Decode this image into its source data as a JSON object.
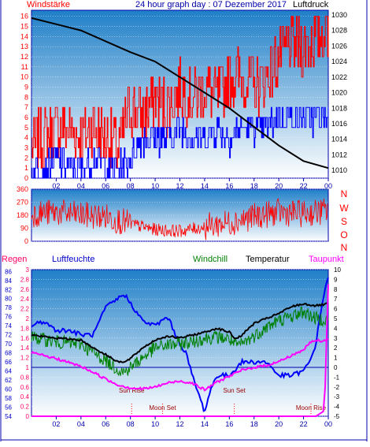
{
  "header": {
    "left": "Windstärke",
    "center": "24 hour graph day : 07 Dezember 2017",
    "right": "Luftdruck"
  },
  "colors": {
    "wind_gust": "#ff0000",
    "wind_avg": "#0000ff",
    "pressure": "#000000",
    "direction": "#ff0000",
    "rain": "#ff00ff",
    "humidity": "#0000ff",
    "windchill": "#008000",
    "temperature": "#000000",
    "dewpoint": "#ff00ff",
    "axis_rain": "#ff0066",
    "axis_humidity": "#0000cc",
    "frame": "#0000aa"
  },
  "chart_data": [
    {
      "type": "line",
      "name": "wind-pressure",
      "title": "24 hour graph day : 07 Dezember 2017",
      "ylabel_left": "Windstärke",
      "ylabel_right": "Luftdruck",
      "x_ticks": [
        "02",
        "04",
        "06",
        "08",
        "10",
        "12",
        "14",
        "16",
        "18",
        "20",
        "22",
        "00"
      ],
      "x_range_hours": [
        0,
        24
      ],
      "y_left_ticks": [
        "0",
        "1",
        "2",
        "3",
        "4",
        "5",
        "6",
        "7",
        "8",
        "9",
        "10",
        "11",
        "12",
        "13",
        "14",
        "15",
        "16"
      ],
      "ylim_left": [
        0,
        16.6
      ],
      "y_right_ticks": [
        "1010",
        "1012",
        "1014",
        "1016",
        "1018",
        "1020",
        "1022",
        "1024",
        "1026",
        "1028",
        "1030"
      ],
      "ylim_right": [
        1009,
        1030.6
      ],
      "series": [
        {
          "key": "gust",
          "hours": [
            0,
            1,
            2,
            3,
            4,
            5,
            6,
            7,
            8,
            9,
            10,
            11,
            12,
            13,
            14,
            15,
            16,
            17,
            18,
            19,
            20,
            21,
            22,
            23,
            24
          ],
          "values": [
            3,
            4,
            5,
            5,
            4,
            5,
            4,
            3,
            7,
            6,
            8,
            7,
            9,
            8,
            9,
            8,
            10,
            10,
            9,
            10,
            12,
            13,
            13,
            14,
            15
          ]
        },
        {
          "key": "avg",
          "hours": [
            0,
            1,
            2,
            3,
            4,
            5,
            6,
            7,
            8,
            9,
            10,
            11,
            12,
            13,
            14,
            15,
            16,
            17,
            18,
            19,
            20,
            21,
            22,
            23,
            24
          ],
          "values": [
            1,
            1,
            2,
            1,
            1,
            2,
            1,
            1,
            2,
            4,
            4,
            4,
            5,
            4,
            4,
            5,
            4,
            5,
            5,
            5,
            6,
            6,
            6,
            6,
            6
          ]
        },
        {
          "key": "pressure",
          "hours": [
            0,
            2,
            4,
            6,
            8,
            10,
            12,
            14,
            16,
            18,
            20,
            22,
            24
          ],
          "values": [
            1029.6,
            1028.8,
            1028.0,
            1026.6,
            1025.2,
            1024.0,
            1022.0,
            1020.0,
            1018.0,
            1015.6,
            1013.2,
            1011.2,
            1010.3
          ]
        }
      ]
    },
    {
      "type": "line",
      "name": "wind-direction",
      "x_ticks": [
        "02",
        "04",
        "06",
        "08",
        "10",
        "12",
        "14",
        "16",
        "18",
        "20",
        "22",
        "00"
      ],
      "x_range_hours": [
        0,
        24
      ],
      "y_ticks": [
        "0",
        "90",
        "180",
        "270",
        "360"
      ],
      "ylim": [
        0,
        360
      ],
      "compass_labels": [
        "N",
        "W",
        "S",
        "O",
        "N"
      ],
      "series": [
        {
          "key": "direction",
          "hours": [
            0,
            2,
            4,
            6,
            8,
            10,
            12,
            14,
            16,
            18,
            20,
            22,
            24
          ],
          "values": [
            190,
            200,
            180,
            170,
            120,
            80,
            70,
            100,
            130,
            170,
            200,
            190,
            210
          ]
        }
      ]
    },
    {
      "type": "line",
      "name": "humidity-temperature",
      "legend": [
        "Regen",
        "Luftfeuchte",
        "Windchill",
        "Temperatur",
        "Taupunkt"
      ],
      "x_ticks": [
        "02",
        "04",
        "06",
        "08",
        "10",
        "12",
        "14",
        "16",
        "18",
        "20",
        "22",
        "00"
      ],
      "x_range_hours": [
        0,
        24
      ],
      "y_rain_ticks": [
        "0",
        "0.2",
        "0.4",
        "0.6",
        "0.8",
        "1",
        "1.2",
        "1.4",
        "1.6",
        "1.8",
        "2",
        "2.2",
        "2.4",
        "2.6",
        "2.8",
        "3"
      ],
      "ylim_rain": [
        0,
        3
      ],
      "y_humidity_ticks": [
        "54",
        "56",
        "58",
        "60",
        "62",
        "64",
        "66",
        "68",
        "70",
        "72",
        "74",
        "76",
        "78",
        "80",
        "82",
        "84",
        "86"
      ],
      "ylim_humidity": [
        54,
        86.4
      ],
      "y_temp_ticks": [
        "-5",
        "-4",
        "-3",
        "-2",
        "-1",
        "0",
        "1",
        "2",
        "3",
        "4",
        "5",
        "6",
        "7",
        "8",
        "9",
        "10"
      ],
      "ylim_temp": [
        -5,
        10
      ],
      "annotations": [
        "Sun Rise",
        "Moon Set",
        "Sun Set",
        "Moon Rise"
      ],
      "annotation_hours": [
        8.1,
        10.6,
        16.4,
        22.6
      ],
      "series": [
        {
          "key": "temperature",
          "hours": [
            0,
            2,
            4,
            5,
            6,
            7,
            7.5,
            8,
            9,
            10,
            11,
            12,
            13,
            14,
            15,
            16,
            16.5,
            17,
            18,
            19,
            20,
            21,
            22,
            23,
            24
          ],
          "values": [
            3.3,
            3.0,
            2.8,
            2.0,
            1.3,
            0.6,
            0.5,
            0.9,
            2.0,
            2.8,
            3.2,
            3.0,
            3.3,
            3.6,
            4.0,
            3.6,
            2.9,
            3.3,
            4.5,
            5.0,
            5.5,
            6.2,
            6.5,
            6.3,
            6.5
          ]
        },
        {
          "key": "windchill",
          "hours": [
            0,
            2,
            4,
            5,
            6,
            7,
            7.5,
            8,
            9,
            10,
            11,
            12,
            13,
            14,
            15,
            16,
            16.5,
            17,
            18,
            19,
            20,
            21,
            22,
            23,
            24
          ],
          "values": [
            3.1,
            2.6,
            2.4,
            1.5,
            0.7,
            -0.2,
            -0.5,
            0.0,
            1.0,
            2.0,
            2.3,
            2.4,
            2.6,
            3.0,
            3.1,
            2.9,
            2.2,
            2.4,
            3.2,
            4.1,
            4.8,
            5.2,
            5.7,
            5.0,
            4.9
          ]
        },
        {
          "key": "dewpoint",
          "hours": [
            0,
            1,
            2,
            3,
            4,
            5,
            6,
            7,
            8,
            9,
            10,
            11,
            12,
            13,
            14,
            15,
            16,
            17,
            18,
            19,
            20,
            21,
            22,
            22.5,
            23,
            23.5,
            24
          ],
          "values": [
            1.5,
            1.2,
            0.9,
            0.5,
            0.1,
            -0.5,
            -1.2,
            -1.8,
            -2.1,
            -2.2,
            -2.0,
            -1.6,
            -1.4,
            -1.6,
            -2.3,
            -1.5,
            -0.9,
            -0.3,
            0.0,
            0.2,
            0.6,
            1.2,
            1.8,
            2.5,
            2.8,
            2.6,
            2.9
          ]
        },
        {
          "key": "humidity",
          "hours": [
            0,
            1,
            2,
            3,
            4,
            5,
            6,
            7,
            7.5,
            8,
            9,
            10,
            11,
            12,
            12.5,
            13,
            14,
            14.5,
            15,
            16,
            17,
            18,
            19,
            20,
            21,
            22,
            22.5,
            23,
            23.5,
            24
          ],
          "values": [
            74,
            75,
            73,
            73,
            72,
            72,
            78,
            80,
            81,
            79,
            75,
            74,
            76,
            70,
            68,
            63,
            55,
            60,
            63,
            63,
            66,
            66,
            66,
            63,
            63,
            64,
            66,
            70,
            79,
            85
          ]
        },
        {
          "key": "rain",
          "hours": [
            0,
            23.0,
            23.6,
            24
          ],
          "values": [
            0,
            0,
            0.1,
            2.7
          ]
        }
      ]
    }
  ]
}
